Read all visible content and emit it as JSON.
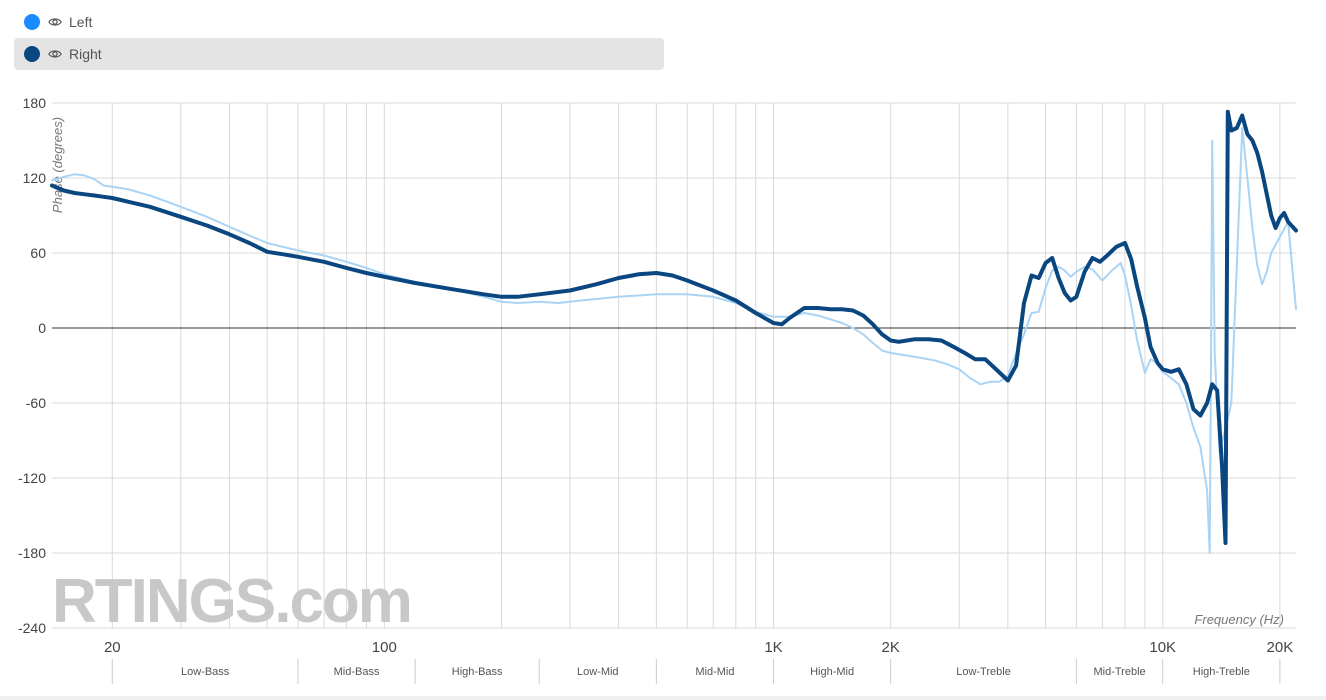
{
  "legend": [
    {
      "label": "Left",
      "color": "#1a8cff",
      "icon": "eye-icon"
    },
    {
      "label": "Right",
      "color": "#0a4680",
      "icon": "eye-icon",
      "active": true
    }
  ],
  "chart_data": {
    "type": "line",
    "xscale": "log",
    "xlim": [
      14,
      22000
    ],
    "ylim": [
      -240,
      180
    ],
    "ylabel": "Phase (degrees)",
    "xlabel": "Frequency (Hz)",
    "yticks": [
      180,
      120,
      60,
      0,
      -60,
      -120,
      -180,
      -240
    ],
    "xtick_labels": [
      {
        "value": 20,
        "label": "20"
      },
      {
        "value": 100,
        "label": "100"
      },
      {
        "value": 1000,
        "label": "1K"
      },
      {
        "value": 2000,
        "label": "2K"
      },
      {
        "value": 10000,
        "label": "10K"
      },
      {
        "value": 20000,
        "label": "20K"
      }
    ],
    "bands": [
      {
        "label": "Low-Bass",
        "from": 20,
        "to": 60
      },
      {
        "label": "Mid-Bass",
        "from": 60,
        "to": 120
      },
      {
        "label": "High-Bass",
        "from": 120,
        "to": 250
      },
      {
        "label": "Low-Mid",
        "from": 250,
        "to": 500
      },
      {
        "label": "Mid-Mid",
        "from": 500,
        "to": 1000
      },
      {
        "label": "High-Mid",
        "from": 1000,
        "to": 2000
      },
      {
        "label": "Low-Treble",
        "from": 2000,
        "to": 6000
      },
      {
        "label": "Mid-Treble",
        "from": 6000,
        "to": 10000
      },
      {
        "label": "High-Treble",
        "from": 10000,
        "to": 20000
      }
    ],
    "grid": true,
    "zero_line": true,
    "watermark": "RTINGS.com",
    "series": [
      {
        "name": "Left",
        "color": "#a9d4f5",
        "width": 2,
        "points": [
          [
            14,
            118
          ],
          [
            15,
            121
          ],
          [
            16,
            123
          ],
          [
            17,
            122
          ],
          [
            18,
            119
          ],
          [
            19,
            114
          ],
          [
            20,
            113
          ],
          [
            22,
            111
          ],
          [
            25,
            106
          ],
          [
            30,
            97
          ],
          [
            35,
            89
          ],
          [
            40,
            81
          ],
          [
            45,
            74
          ],
          [
            50,
            68
          ],
          [
            60,
            62
          ],
          [
            70,
            58
          ],
          [
            80,
            53
          ],
          [
            90,
            48
          ],
          [
            100,
            43
          ],
          [
            120,
            37
          ],
          [
            150,
            31
          ],
          [
            180,
            25
          ],
          [
            200,
            21
          ],
          [
            220,
            20
          ],
          [
            250,
            21
          ],
          [
            280,
            20
          ],
          [
            320,
            22
          ],
          [
            400,
            25
          ],
          [
            500,
            27
          ],
          [
            600,
            27
          ],
          [
            700,
            25
          ],
          [
            800,
            20
          ],
          [
            900,
            13
          ],
          [
            1000,
            9
          ],
          [
            1100,
            9
          ],
          [
            1200,
            12
          ],
          [
            1300,
            10
          ],
          [
            1400,
            7
          ],
          [
            1500,
            4
          ],
          [
            1600,
            0
          ],
          [
            1700,
            -5
          ],
          [
            1800,
            -12
          ],
          [
            1900,
            -18
          ],
          [
            2000,
            -20
          ],
          [
            2200,
            -22
          ],
          [
            2400,
            -24
          ],
          [
            2600,
            -26
          ],
          [
            2800,
            -29
          ],
          [
            3000,
            -33
          ],
          [
            3200,
            -40
          ],
          [
            3400,
            -45
          ],
          [
            3600,
            -43
          ],
          [
            3800,
            -43
          ],
          [
            4000,
            -38
          ],
          [
            4200,
            -20
          ],
          [
            4400,
            -5
          ],
          [
            4600,
            12
          ],
          [
            4800,
            13
          ],
          [
            5000,
            32
          ],
          [
            5200,
            46
          ],
          [
            5400,
            49
          ],
          [
            5600,
            46
          ],
          [
            5800,
            41
          ],
          [
            6000,
            45
          ],
          [
            6300,
            49
          ],
          [
            6600,
            47
          ],
          [
            7000,
            38
          ],
          [
            7400,
            46
          ],
          [
            7800,
            52
          ],
          [
            8000,
            42
          ],
          [
            8300,
            18
          ],
          [
            8600,
            -10
          ],
          [
            9000,
            -36
          ],
          [
            9300,
            -25
          ],
          [
            9700,
            -28
          ],
          [
            10000,
            -35
          ],
          [
            10500,
            -40
          ],
          [
            11000,
            -45
          ],
          [
            11500,
            -60
          ],
          [
            12000,
            -80
          ],
          [
            12500,
            -95
          ],
          [
            13000,
            -130
          ],
          [
            13200,
            -180
          ],
          [
            13300,
            -40
          ],
          [
            13400,
            150
          ],
          [
            13600,
            -20
          ],
          [
            14000,
            -100
          ],
          [
            14500,
            -80
          ],
          [
            15000,
            -60
          ],
          [
            15500,
            50
          ],
          [
            16000,
            160
          ],
          [
            16500,
            120
          ],
          [
            17000,
            80
          ],
          [
            17500,
            50
          ],
          [
            18000,
            35
          ],
          [
            18500,
            45
          ],
          [
            19000,
            60
          ],
          [
            20000,
            73
          ],
          [
            21000,
            85
          ],
          [
            22000,
            15
          ]
        ]
      },
      {
        "name": "Right",
        "color": "#0a4680",
        "width": 4,
        "points": [
          [
            14,
            114
          ],
          [
            15,
            110
          ],
          [
            16,
            108
          ],
          [
            17,
            107
          ],
          [
            18,
            106
          ],
          [
            19,
            105
          ],
          [
            20,
            104
          ],
          [
            22,
            101
          ],
          [
            25,
            97
          ],
          [
            30,
            89
          ],
          [
            35,
            82
          ],
          [
            40,
            75
          ],
          [
            45,
            68
          ],
          [
            50,
            61
          ],
          [
            55,
            59
          ],
          [
            60,
            57
          ],
          [
            70,
            53
          ],
          [
            80,
            48
          ],
          [
            90,
            44
          ],
          [
            100,
            41
          ],
          [
            120,
            36
          ],
          [
            150,
            31
          ],
          [
            180,
            27
          ],
          [
            200,
            25
          ],
          [
            220,
            25
          ],
          [
            250,
            27
          ],
          [
            300,
            30
          ],
          [
            350,
            35
          ],
          [
            400,
            40
          ],
          [
            450,
            43
          ],
          [
            500,
            44
          ],
          [
            550,
            42
          ],
          [
            600,
            38
          ],
          [
            700,
            30
          ],
          [
            800,
            22
          ],
          [
            900,
            12
          ],
          [
            1000,
            4
          ],
          [
            1050,
            3
          ],
          [
            1100,
            8
          ],
          [
            1200,
            16
          ],
          [
            1300,
            16
          ],
          [
            1400,
            15
          ],
          [
            1500,
            15
          ],
          [
            1600,
            14
          ],
          [
            1700,
            10
          ],
          [
            1800,
            3
          ],
          [
            1900,
            -5
          ],
          [
            2000,
            -10
          ],
          [
            2100,
            -11
          ],
          [
            2200,
            -10
          ],
          [
            2300,
            -9
          ],
          [
            2500,
            -9
          ],
          [
            2700,
            -10
          ],
          [
            2900,
            -15
          ],
          [
            3100,
            -20
          ],
          [
            3300,
            -25
          ],
          [
            3500,
            -25
          ],
          [
            3700,
            -32
          ],
          [
            4000,
            -42
          ],
          [
            4200,
            -30
          ],
          [
            4400,
            20
          ],
          [
            4600,
            42
          ],
          [
            4800,
            40
          ],
          [
            5000,
            52
          ],
          [
            5200,
            56
          ],
          [
            5400,
            40
          ],
          [
            5600,
            28
          ],
          [
            5800,
            22
          ],
          [
            6000,
            25
          ],
          [
            6300,
            45
          ],
          [
            6600,
            56
          ],
          [
            6900,
            53
          ],
          [
            7200,
            58
          ],
          [
            7600,
            65
          ],
          [
            8000,
            68
          ],
          [
            8300,
            55
          ],
          [
            8600,
            33
          ],
          [
            9000,
            8
          ],
          [
            9300,
            -15
          ],
          [
            9700,
            -28
          ],
          [
            10000,
            -33
          ],
          [
            10500,
            -35
          ],
          [
            11000,
            -33
          ],
          [
            11500,
            -45
          ],
          [
            12000,
            -65
          ],
          [
            12500,
            -70
          ],
          [
            13000,
            -60
          ],
          [
            13400,
            -45
          ],
          [
            13800,
            -50
          ],
          [
            14200,
            -110
          ],
          [
            14500,
            -172
          ],
          [
            14700,
            173
          ],
          [
            15000,
            158
          ],
          [
            15500,
            160
          ],
          [
            16000,
            170
          ],
          [
            16500,
            155
          ],
          [
            17000,
            150
          ],
          [
            17500,
            140
          ],
          [
            18000,
            125
          ],
          [
            19000,
            90
          ],
          [
            19500,
            80
          ],
          [
            20000,
            88
          ],
          [
            20500,
            92
          ],
          [
            21000,
            85
          ],
          [
            22000,
            78
          ]
        ]
      }
    ]
  }
}
